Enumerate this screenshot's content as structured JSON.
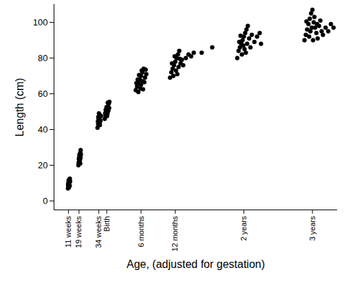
{
  "chart_data": {
    "type": "scatter",
    "x_label": "Age, (adjusted for gestation)",
    "y_label": "Length (cm)",
    "color": "#000000",
    "marker": "circle",
    "grid": false,
    "xlim": [
      0,
      215
    ],
    "xticks": [
      {
        "value": 11,
        "label": "11 weeks"
      },
      {
        "value": 19,
        "label": "19 weeks"
      },
      {
        "value": 34,
        "label": "34 weeks"
      },
      {
        "value": 40,
        "label": "Birth"
      },
      {
        "value": 66,
        "label": "6 months"
      },
      {
        "value": 92,
        "label": "12 months"
      },
      {
        "value": 144,
        "label": "2 years"
      },
      {
        "value": 196,
        "label": "3 years"
      }
    ],
    "ylim": [
      -5,
      110
    ],
    "yticks": [
      0,
      20,
      40,
      60,
      80,
      100
    ],
    "x": [
      10.6,
      11.0,
      11.2,
      10.8,
      11.4,
      11.6,
      10.9,
      11.3,
      11.8,
      12.0,
      10.7,
      11.5,
      11.1,
      11.9,
      12.2,
      18.5,
      18.8,
      19.0,
      19.2,
      19.5,
      19.8,
      19.3,
      20.0,
      20.2,
      18.9,
      19.6,
      20.4,
      19.1,
      19.9,
      20.1,
      33.0,
      33.5,
      34.0,
      34.2,
      34.5,
      33.8,
      35.0,
      34.8,
      35.3,
      33.3,
      34.1,
      35.6,
      33.6,
      34.7,
      38.5,
      39.0,
      39.5,
      40.0,
      40.5,
      41.0,
      41.5,
      39.2,
      40.2,
      40.8,
      41.8,
      38.8,
      39.8,
      40.6,
      41.2,
      42.0,
      62,
      63,
      64,
      65,
      66,
      67,
      68,
      64,
      66,
      67,
      69,
      70,
      63.5,
      65.5,
      68.5,
      62.5,
      66.5,
      69.5,
      64.5,
      67.5,
      88,
      89,
      90,
      91,
      92,
      93,
      94,
      95,
      90.5,
      92.5,
      94.5,
      96,
      97,
      98,
      89.5,
      91.5,
      93.5,
      95.5,
      100,
      102,
      104,
      106,
      112,
      120,
      139,
      140,
      141,
      142,
      143,
      144,
      145,
      146,
      147,
      140.5,
      142.5,
      144.5,
      146.5,
      148,
      149,
      150,
      141.5,
      143.5,
      145.5,
      152,
      154,
      156,
      157,
      190,
      191,
      192,
      193,
      194,
      195,
      196,
      197,
      198,
      199,
      200,
      201,
      202,
      203,
      191.5,
      193.5,
      195.5,
      197.5,
      199.5,
      204,
      206,
      208,
      210,
      212,
      196.5,
      194.5
    ],
    "values": [
      7,
      8.5,
      9.5,
      10,
      11,
      12,
      8,
      7.5,
      10.5,
      12.5,
      9,
      9,
      11.5,
      8.5,
      11,
      20,
      21.5,
      22,
      23,
      24,
      25,
      26,
      27,
      28.5,
      23.5,
      22.5,
      26,
      24.5,
      21,
      24,
      41,
      43,
      44,
      45.5,
      47,
      46,
      48,
      42.5,
      45,
      44.5,
      49,
      47.5,
      47,
      44,
      46,
      48,
      49.5,
      50,
      51.5,
      53,
      54.5,
      51,
      47.5,
      55,
      52,
      49,
      52.5,
      49,
      50.5,
      55.5,
      62,
      64,
      66,
      68,
      70,
      72,
      74,
      61,
      65,
      67,
      69,
      71,
      68,
      63,
      66.5,
      66,
      73,
      73.5,
      70.5,
      62.5,
      69,
      72,
      74,
      76,
      78,
      80,
      82,
      84,
      70,
      73,
      75,
      77,
      79,
      76,
      77,
      81,
      71,
      79.5,
      80,
      82,
      81,
      83,
      83,
      86,
      80,
      84,
      86,
      88,
      90,
      92,
      94,
      96,
      98,
      89,
      82,
      85,
      88,
      91,
      86,
      93,
      92.5,
      87,
      83,
      89,
      92,
      94,
      88,
      90,
      93,
      96,
      99,
      102,
      105,
      107,
      100,
      97,
      94,
      91,
      98,
      101,
      95,
      100.5,
      92,
      97,
      103,
      99,
      93,
      97,
      95,
      99,
      97,
      90,
      95
    ]
  }
}
